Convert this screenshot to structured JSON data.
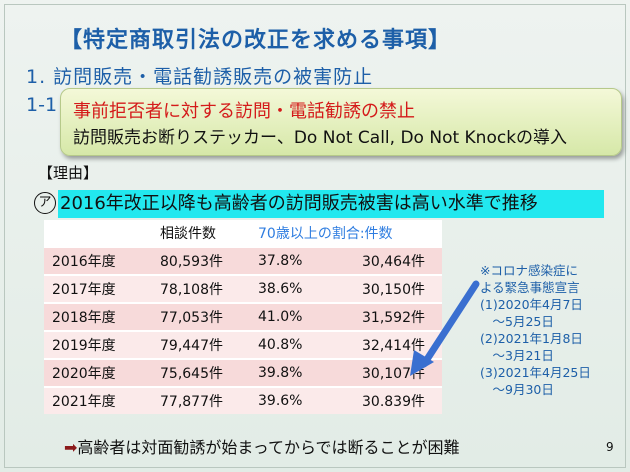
{
  "slide": {
    "title": "【特定商取引法の改正を求める事項】",
    "heading1": "1. 訪問販売・電話勧誘販売の被害防止",
    "heading11": "1-1",
    "callout": {
      "line1": "事前拒否者に対する訪問・電話勧誘の禁止",
      "line2": "訪問販売お断りステッカー、Do Not Call, Do Not Knockの導入"
    },
    "reason_label": "【理由】",
    "point_mark": "ア",
    "point_text": "2016年改正以降も高齢者の訪問販売被害は高い水準で推移",
    "table": {
      "headers": [
        "",
        "相談件数",
        "70歳以上の割合:件数",
        ""
      ],
      "rows": [
        [
          "2016年度",
          "80,593件",
          "37.8%",
          "30,464件"
        ],
        [
          "2017年度",
          "78,108件",
          "38.6%",
          "30,150件"
        ],
        [
          "2018年度",
          "77,053件",
          "41.0%",
          "31,592件"
        ],
        [
          "2019年度",
          "79,447件",
          "40.8%",
          "32,414件"
        ],
        [
          "2020年度",
          "75,645件",
          "39.8%",
          "30,107件"
        ],
        [
          "2021年度",
          "77,877件",
          "39.6%",
          "30.839件"
        ]
      ]
    },
    "note": [
      "※コロナ感染症に",
      "よる緊急事態宣言",
      "(1)2020年4月7日",
      "　～5月25日",
      "(2)2021年1月8日",
      "　～3月21日",
      "(3)2021年4月25日",
      "　～9月30日"
    ],
    "conclusion_arrow": "➡",
    "conclusion": "高齢者は対面勧誘が始まってからでは断ることが困難",
    "page_number": "9"
  },
  "colors": {
    "title_blue": "#1d5fa8",
    "callout_red": "#d41a1a",
    "highlight_cyan": "#22e8ef",
    "table_row_pink": "#f7dada",
    "rate_header_blue": "#2f7de0"
  },
  "icons": {
    "note_pointer": "arrow-icon"
  }
}
